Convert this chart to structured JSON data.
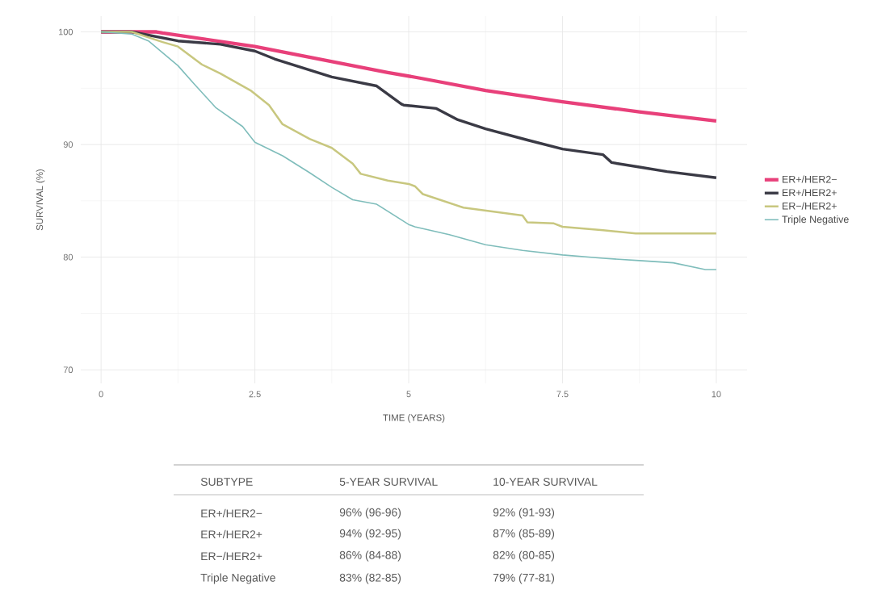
{
  "chart_data": {
    "type": "line",
    "xlabel": "TIME (YEARS)",
    "ylabel": "SURVIVAL (%)",
    "xlim": [
      -0.33,
      10.5
    ],
    "ylim": [
      68.8,
      101.4
    ],
    "xticks": [
      0,
      2.5,
      5,
      7.5,
      10
    ],
    "yticks": [
      70,
      80,
      90,
      100
    ],
    "grid": true,
    "legend": "right",
    "series": [
      {
        "name": "ER+/HER2−",
        "color": "#e8407a",
        "x": [
          0,
          0.9,
          1.0,
          2.5,
          4.66,
          5.18,
          6.25,
          7.5,
          8.75,
          10
        ],
        "values": [
          100,
          100,
          99.9,
          98.7,
          96.4,
          95.9,
          94.8,
          93.8,
          92.9,
          92.1
        ]
      },
      {
        "name": "ER+/HER2+",
        "color": "#3a3a45",
        "x": [
          0,
          0.5,
          1.25,
          1.94,
          2.5,
          2.82,
          3.75,
          4.48,
          4.88,
          4.92,
          5.45,
          5.8,
          6.25,
          6.93,
          7.5,
          8.16,
          8.3,
          8.75,
          9.2,
          10
        ],
        "values": [
          100,
          100,
          99.2,
          98.9,
          98.3,
          97.6,
          96.0,
          95.2,
          93.6,
          93.5,
          93.2,
          92.2,
          91.4,
          90.4,
          89.6,
          89.1,
          88.4,
          88.0,
          87.6,
          87.05
        ]
      },
      {
        "name": "ER−/HER2+",
        "color": "#c8c77f",
        "x": [
          0,
          0.5,
          1.0,
          1.25,
          1.64,
          1.94,
          2.43,
          2.73,
          2.95,
          3.39,
          3.75,
          4.09,
          4.22,
          4.66,
          5.0,
          5.1,
          5.23,
          5.89,
          6.85,
          6.93,
          7.36,
          7.5,
          8.16,
          8.69,
          10
        ],
        "values": [
          100,
          100,
          99.1,
          98.7,
          97.1,
          96.3,
          94.8,
          93.5,
          91.8,
          90.5,
          89.7,
          88.3,
          87.4,
          86.8,
          86.5,
          86.3,
          85.6,
          84.4,
          83.7,
          83.1,
          83.0,
          82.7,
          82.4,
          82.1,
          82.1
        ]
      },
      {
        "name": "Triple Negative",
        "color": "#7fbdbb",
        "x": [
          0,
          0.5,
          0.77,
          1.25,
          1.51,
          1.86,
          2.3,
          2.5,
          2.95,
          3.39,
          3.75,
          4.09,
          4.48,
          5.0,
          5.1,
          5.66,
          6.25,
          6.85,
          7.5,
          8.16,
          8.75,
          9.3,
          9.82,
          10
        ],
        "values": [
          100,
          99.8,
          99.2,
          97.0,
          95.4,
          93.3,
          91.6,
          90.2,
          89.0,
          87.5,
          86.2,
          85.1,
          84.7,
          82.9,
          82.7,
          82.0,
          81.1,
          80.6,
          80.2,
          79.9,
          79.7,
          79.5,
          78.9,
          78.9
        ]
      }
    ],
    "annotations": [
      "SUBTYPE",
      "5-YEAR SURVIVAL",
      "10-YEAR SURVIVAL",
      "ER+/HER2−",
      "96% (96-96)",
      "92% (91-93)",
      "ER+/HER2+",
      "94% (92-95)",
      "87% (85-89)",
      "ER−/HER2+",
      "86% (84-88)",
      "82% (80-85)",
      "Triple Negative",
      "83% (82-85)",
      "79% (77-81)"
    ]
  }
}
